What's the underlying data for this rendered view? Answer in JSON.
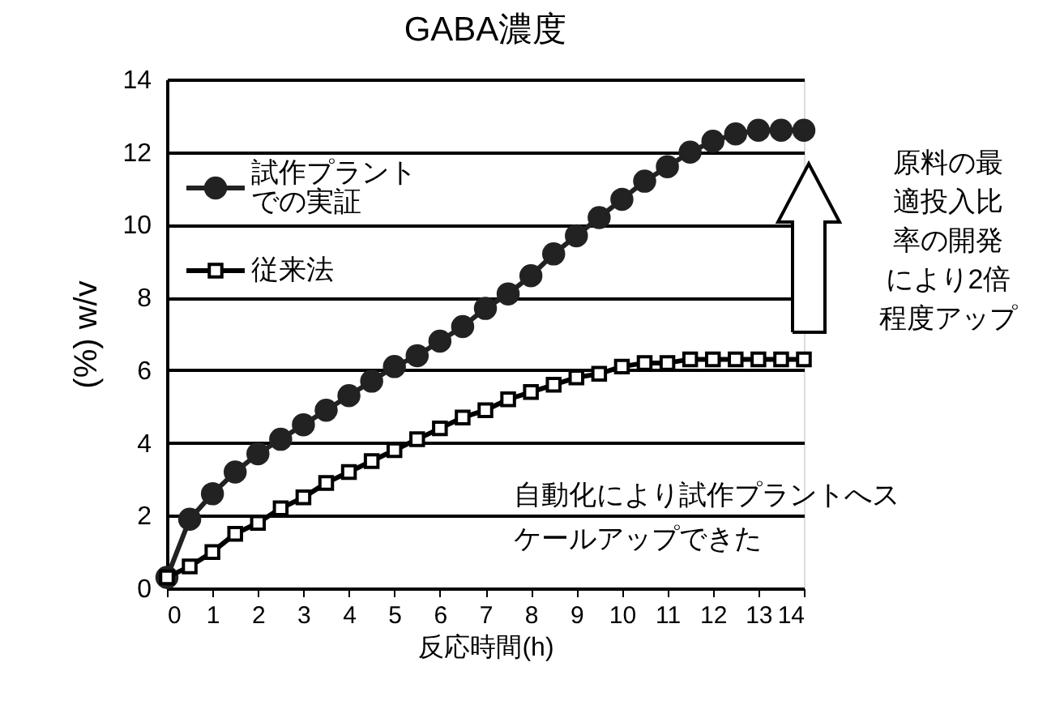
{
  "chart_data": {
    "type": "line",
    "title": "GABA濃度",
    "xlabel": "反応時間(h)",
    "ylabel": "(%) w/v",
    "x": [
      0,
      0.5,
      1,
      1.5,
      2,
      2.5,
      3,
      3.5,
      4,
      4.5,
      5,
      5.5,
      6,
      6.5,
      7,
      7.5,
      8,
      8.5,
      9,
      9.5,
      10,
      10.5,
      11,
      11.5,
      12,
      12.5,
      13,
      13.5,
      14
    ],
    "series": [
      {
        "name": "試作プラントでの実証",
        "color": "#222222",
        "marker": "circle",
        "values": [
          0.3,
          1.9,
          2.6,
          3.2,
          3.7,
          4.1,
          4.5,
          4.9,
          5.3,
          5.7,
          6.1,
          6.4,
          6.8,
          7.2,
          7.7,
          8.1,
          8.6,
          9.2,
          9.7,
          10.2,
          10.7,
          11.2,
          11.6,
          12.0,
          12.3,
          12.5,
          12.6,
          12.6,
          12.6
        ]
      },
      {
        "name": "従来法",
        "color": "#000000",
        "marker": "square",
        "values": [
          0.3,
          0.6,
          1.0,
          1.5,
          1.8,
          2.2,
          2.5,
          2.9,
          3.2,
          3.5,
          3.8,
          4.1,
          4.4,
          4.7,
          4.9,
          5.2,
          5.4,
          5.6,
          5.8,
          5.9,
          6.1,
          6.2,
          6.2,
          6.3,
          6.3,
          6.3,
          6.3,
          6.3,
          6.3
        ]
      }
    ],
    "xlim": [
      0,
      14
    ],
    "xticks": [
      0,
      1,
      2,
      3,
      4,
      5,
      6,
      7,
      8,
      9,
      10,
      11,
      12,
      13,
      14
    ],
    "ylim": [
      0,
      14
    ],
    "yticks": [
      0,
      2,
      4,
      6,
      8,
      10,
      12,
      14
    ],
    "grid": "y",
    "legend": "top left",
    "annotations": [
      "原料の最適投入比率の開発により2倍程度アップ",
      "自動化により試作プラントへスケールアップできた"
    ]
  }
}
